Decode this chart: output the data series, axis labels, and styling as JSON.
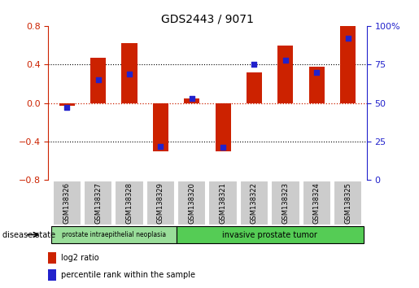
{
  "title": "GDS2443 / 9071",
  "samples": [
    "GSM138326",
    "GSM138327",
    "GSM138328",
    "GSM138329",
    "GSM138320",
    "GSM138321",
    "GSM138322",
    "GSM138323",
    "GSM138324",
    "GSM138325"
  ],
  "log2_ratio": [
    -0.03,
    0.47,
    0.62,
    -0.5,
    0.05,
    -0.5,
    0.32,
    0.6,
    0.38,
    0.8
  ],
  "percentile_rank": [
    47,
    65,
    69,
    22,
    53,
    21,
    75,
    78,
    70,
    92
  ],
  "ylim_left": [
    -0.8,
    0.8
  ],
  "ylim_right": [
    0,
    100
  ],
  "yticks_left": [
    -0.8,
    -0.4,
    0,
    0.4,
    0.8
  ],
  "yticks_right": [
    0,
    25,
    50,
    75,
    100
  ],
  "bar_color": "#cc2200",
  "dot_color": "#2222cc",
  "zero_line_color": "#cc2200",
  "dotted_line_color": "#000000",
  "group1_label": "prostate intraepithelial neoplasia",
  "group2_label": "invasive prostate tumor",
  "group1_count": 4,
  "group2_count": 6,
  "disease_state_label": "disease state",
  "legend_bar_label": "log2 ratio",
  "legend_dot_label": "percentile rank within the sample",
  "group1_color": "#99dd99",
  "group2_color": "#55cc55",
  "sample_box_color": "#cccccc",
  "background_color": "#ffffff"
}
